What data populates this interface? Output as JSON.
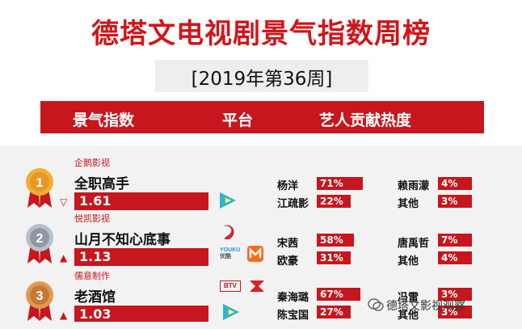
{
  "title": "德塔文电视剧景气指数周榜",
  "week": "[2019年第36周]",
  "header": {
    "index_label": "景气指数",
    "platform_label": "平台",
    "artist_label": "艺人贡献热度"
  },
  "colors": {
    "accent": "#c7161d",
    "gold": "#e8a020",
    "silver": "#9aa3ad",
    "bronze": "#d08a3a"
  },
  "rows": [
    {
      "rank": "1",
      "company": "企鹅影视",
      "show": "全职高手",
      "score": "1.61",
      "trend": "▽",
      "platforms": [
        "tencent-video-icon"
      ],
      "artists": [
        {
          "name": "杨洋",
          "pct": "71%",
          "level": 0.71
        },
        {
          "name": "江疏影",
          "pct": "22%",
          "level": 0.22
        },
        {
          "name": "赖雨濛",
          "pct": "4%",
          "level": 0.04
        },
        {
          "name": "其他",
          "pct": "3%",
          "level": 0.03
        }
      ]
    },
    {
      "rank": "2",
      "company": "悦凯影视",
      "show": "山月不知心底事",
      "score": "1.13",
      "trend": "▲",
      "platforms": [
        "jiangsu-tv-icon",
        "youku-icon",
        "mgtv-icon"
      ],
      "platform_labels": {
        "youku": "YOUKU",
        "youku_cn": "优酷"
      },
      "artists": [
        {
          "name": "宋茜",
          "pct": "58%",
          "level": 0.58
        },
        {
          "name": "欧豪",
          "pct": "31%",
          "level": 0.31
        },
        {
          "name": "唐禹哲",
          "pct": "7%",
          "level": 0.07
        },
        {
          "name": "其他",
          "pct": "4%",
          "level": 0.04
        }
      ]
    },
    {
      "rank": "3",
      "company": "儒意制作",
      "show": "老酒馆",
      "score": "1.03",
      "trend": "▲",
      "platforms": [
        "btv-icon",
        "guangdong-tv-icon",
        "tencent-video-icon"
      ],
      "platform_labels": {
        "btv": "BTV"
      },
      "artists": [
        {
          "name": "秦海璐",
          "pct": "67%",
          "level": 0.67
        },
        {
          "name": "陈宝国",
          "pct": "27%",
          "level": 0.27
        },
        {
          "name": "冯雷",
          "pct": "3%",
          "level": 0.03
        },
        {
          "name": "其他",
          "pct": "3%",
          "level": 0.03
        }
      ]
    }
  ],
  "watermark": "德塔文影视观察"
}
